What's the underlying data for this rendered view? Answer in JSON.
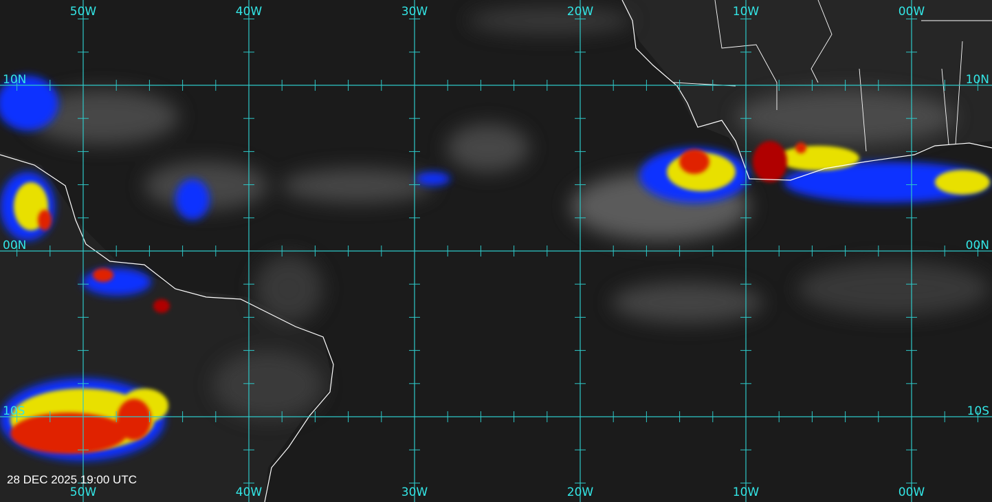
{
  "map": {
    "longitude_labels": [
      "50W",
      "40W",
      "30W",
      "20W",
      "10W",
      "00W"
    ],
    "latitude_labels": [
      "10N",
      "00N",
      "10S"
    ],
    "timestamp": "28 DEC 2025 19:00 UTC"
  }
}
